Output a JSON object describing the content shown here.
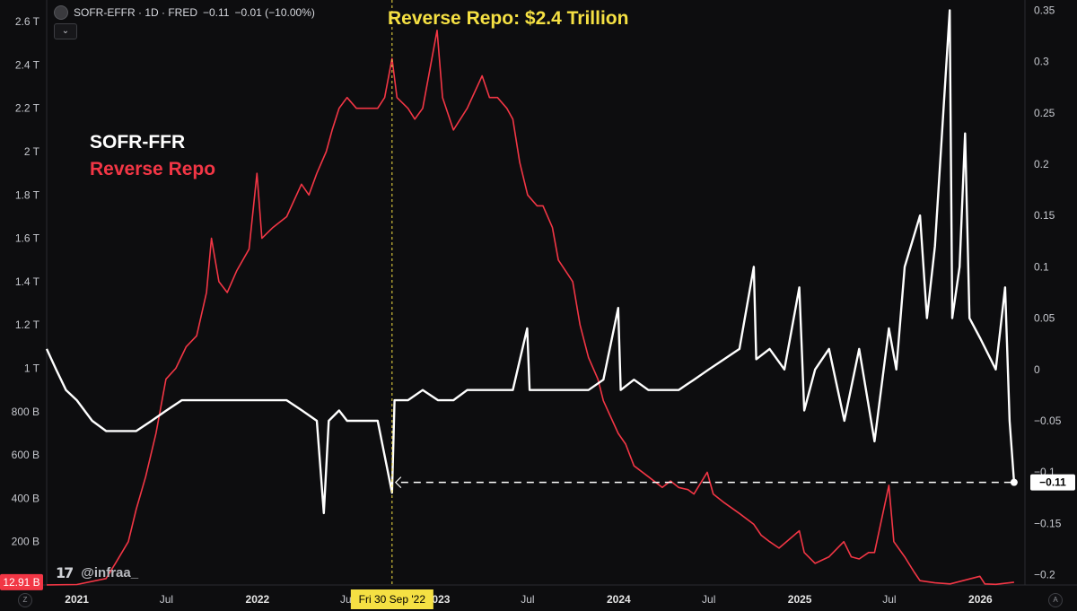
{
  "header": {
    "symbol": "SOFR-EFFR · 1D · FRED",
    "last_value": "−0.11",
    "change": "−0.01 (−10.00%)",
    "collapse_icon": "chevron-down-icon"
  },
  "annotation": {
    "title": "Reverse Repo: $2.4 Trillion",
    "crosshair_date": "Fri 30 Sep '22"
  },
  "legend": {
    "white_label": "SOFR-FFR",
    "red_label": "Reverse Repo"
  },
  "watermark": {
    "logo": "17",
    "handle": "@infraa_"
  },
  "corner": {
    "left": "Z",
    "right": "A"
  },
  "colors": {
    "background": "#0d0d0f",
    "sofr_line": "#ffffff",
    "rrp_line": "#f23645",
    "annotation": "#f5e043"
  },
  "chart_data": {
    "type": "line",
    "title": "Reverse Repo: $2.4 Trillion",
    "x_axis": {
      "range": [
        "2020-11-01",
        "2026-04-01"
      ],
      "ticks": [
        {
          "date": "2021-01-01",
          "label": "2021",
          "year": true
        },
        {
          "date": "2021-07-01",
          "label": "Jul",
          "year": false
        },
        {
          "date": "2022-01-01",
          "label": "2022",
          "year": true
        },
        {
          "date": "2022-07-01",
          "label": "Jul",
          "year": false
        },
        {
          "date": "2023-01-01",
          "label": "2023",
          "year": true
        },
        {
          "date": "2023-07-01",
          "label": "Jul",
          "year": false
        },
        {
          "date": "2024-01-01",
          "label": "2024",
          "year": true
        },
        {
          "date": "2024-07-01",
          "label": "Jul",
          "year": false
        },
        {
          "date": "2025-01-01",
          "label": "2025",
          "year": true
        },
        {
          "date": "2025-07-01",
          "label": "Jul",
          "year": false
        },
        {
          "date": "2026-01-01",
          "label": "2026",
          "year": true
        }
      ]
    },
    "left_axis": {
      "unit": "USD",
      "range": [
        0,
        2700000000000
      ],
      "ticks": [
        {
          "value": 200000000000,
          "label": "200 B"
        },
        {
          "value": 400000000000,
          "label": "400 B"
        },
        {
          "value": 600000000000,
          "label": "600 B"
        },
        {
          "value": 800000000000,
          "label": "800 B"
        },
        {
          "value": 1000000000000,
          "label": "1 T"
        },
        {
          "value": 1200000000000,
          "label": "1.2 T"
        },
        {
          "value": 1400000000000,
          "label": "1.4 T"
        },
        {
          "value": 1600000000000,
          "label": "1.6 T"
        },
        {
          "value": 1800000000000,
          "label": "1.8 T"
        },
        {
          "value": 2000000000000,
          "label": "2 T"
        },
        {
          "value": 2200000000000,
          "label": "2.2 T"
        },
        {
          "value": 2400000000000,
          "label": "2.4 T"
        },
        {
          "value": 2600000000000,
          "label": "2.6 T"
        }
      ],
      "last_value_label": "12.91 B",
      "last_value": 12910000000
    },
    "right_axis": {
      "unit": "percentage points",
      "range": [
        -0.21,
        0.36
      ],
      "ticks": [
        {
          "value": 0.35,
          "label": "0.35"
        },
        {
          "value": 0.3,
          "label": "0.3"
        },
        {
          "value": 0.25,
          "label": "0.25"
        },
        {
          "value": 0.2,
          "label": "0.2"
        },
        {
          "value": 0.15,
          "label": "0.15"
        },
        {
          "value": 0.1,
          "label": "0.1"
        },
        {
          "value": 0.05,
          "label": "0.05"
        },
        {
          "value": 0,
          "label": "0"
        },
        {
          "value": -0.05,
          "label": "−0.05"
        },
        {
          "value": -0.1,
          "label": "−0.1"
        },
        {
          "value": -0.15,
          "label": "−0.15"
        },
        {
          "value": -0.2,
          "label": "−0.2"
        }
      ],
      "last_value_label": "−0.11",
      "last_value": -0.11
    },
    "crosshair_date": "2022-09-30",
    "reference_line": {
      "from": "2022-09-30",
      "to": "2026-03-10",
      "value": -0.11
    },
    "grid": false,
    "legend_placement": "top-left",
    "series": [
      {
        "name": "Reverse Repo",
        "axis": "left",
        "color": "#f23645",
        "points": [
          [
            "2020-11-01",
            0.5
          ],
          [
            "2021-01-01",
            2
          ],
          [
            "2021-03-01",
            30
          ],
          [
            "2021-03-20",
            100
          ],
          [
            "2021-04-15",
            200
          ],
          [
            "2021-05-01",
            350
          ],
          [
            "2021-05-20",
            500
          ],
          [
            "2021-06-10",
            700
          ],
          [
            "2021-06-30",
            950
          ],
          [
            "2021-07-20",
            1000
          ],
          [
            "2021-08-10",
            1100
          ],
          [
            "2021-08-31",
            1150
          ],
          [
            "2021-09-20",
            1350
          ],
          [
            "2021-09-30",
            1600
          ],
          [
            "2021-10-15",
            1400
          ],
          [
            "2021-11-01",
            1350
          ],
          [
            "2021-11-20",
            1450
          ],
          [
            "2021-12-15",
            1550
          ],
          [
            "2021-12-31",
            1900
          ],
          [
            "2022-01-10",
            1600
          ],
          [
            "2022-02-01",
            1650
          ],
          [
            "2022-03-01",
            1700
          ],
          [
            "2022-03-31",
            1850
          ],
          [
            "2022-04-15",
            1800
          ],
          [
            "2022-05-01",
            1900
          ],
          [
            "2022-05-20",
            2000
          ],
          [
            "2022-06-01",
            2100
          ],
          [
            "2022-06-15",
            2200
          ],
          [
            "2022-07-01",
            2250
          ],
          [
            "2022-07-20",
            2200
          ],
          [
            "2022-08-10",
            2200
          ],
          [
            "2022-09-01",
            2200
          ],
          [
            "2022-09-15",
            2250
          ],
          [
            "2022-09-30",
            2430
          ],
          [
            "2022-10-10",
            2250
          ],
          [
            "2022-11-01",
            2200
          ],
          [
            "2022-11-15",
            2150
          ],
          [
            "2022-12-01",
            2200
          ],
          [
            "2022-12-30",
            2560
          ],
          [
            "2023-01-10",
            2250
          ],
          [
            "2023-02-01",
            2100
          ],
          [
            "2023-03-01",
            2200
          ],
          [
            "2023-03-31",
            2350
          ],
          [
            "2023-04-15",
            2250
          ],
          [
            "2023-05-01",
            2250
          ],
          [
            "2023-05-20",
            2200
          ],
          [
            "2023-06-01",
            2150
          ],
          [
            "2023-06-15",
            1950
          ],
          [
            "2023-07-01",
            1800
          ],
          [
            "2023-07-20",
            1750
          ],
          [
            "2023-08-01",
            1750
          ],
          [
            "2023-08-20",
            1650
          ],
          [
            "2023-09-01",
            1500
          ],
          [
            "2023-09-30",
            1400
          ],
          [
            "2023-10-15",
            1200
          ],
          [
            "2023-11-01",
            1050
          ],
          [
            "2023-11-20",
            950
          ],
          [
            "2023-12-01",
            850
          ],
          [
            "2023-12-31",
            700
          ],
          [
            "2024-01-15",
            650
          ],
          [
            "2024-02-01",
            550
          ],
          [
            "2024-03-01",
            500
          ],
          [
            "2024-03-29",
            450
          ],
          [
            "2024-04-15",
            480
          ],
          [
            "2024-05-01",
            450
          ],
          [
            "2024-05-20",
            440
          ],
          [
            "2024-06-01",
            420
          ],
          [
            "2024-06-28",
            520
          ],
          [
            "2024-07-10",
            420
          ],
          [
            "2024-08-01",
            380
          ],
          [
            "2024-09-01",
            330
          ],
          [
            "2024-09-30",
            280
          ],
          [
            "2024-10-15",
            230
          ],
          [
            "2024-11-01",
            200
          ],
          [
            "2024-11-20",
            170
          ],
          [
            "2024-12-31",
            250
          ],
          [
            "2025-01-10",
            150
          ],
          [
            "2025-02-01",
            100
          ],
          [
            "2025-03-01",
            130
          ],
          [
            "2025-03-31",
            200
          ],
          [
            "2025-04-15",
            130
          ],
          [
            "2025-05-01",
            120
          ],
          [
            "2025-05-20",
            150
          ],
          [
            "2025-06-01",
            150
          ],
          [
            "2025-06-30",
            460
          ],
          [
            "2025-07-10",
            200
          ],
          [
            "2025-08-01",
            130
          ],
          [
            "2025-08-20",
            60
          ],
          [
            "2025-09-01",
            20
          ],
          [
            "2025-10-01",
            10
          ],
          [
            "2025-11-01",
            5
          ],
          [
            "2025-12-31",
            40
          ],
          [
            "2026-01-10",
            5
          ],
          [
            "2026-02-01",
            3
          ],
          [
            "2026-03-10",
            12.91
          ]
        ],
        "points_unit": "billions USD"
      },
      {
        "name": "SOFR-FFR",
        "axis": "right",
        "color": "#ffffff",
        "points": [
          [
            "2020-11-01",
            0.02
          ],
          [
            "2020-11-20",
            0
          ],
          [
            "2020-12-10",
            -0.02
          ],
          [
            "2021-01-01",
            -0.03
          ],
          [
            "2021-02-01",
            -0.05
          ],
          [
            "2021-03-01",
            -0.06
          ],
          [
            "2021-04-01",
            -0.06
          ],
          [
            "2021-05-01",
            -0.06
          ],
          [
            "2021-06-01",
            -0.05
          ],
          [
            "2021-07-01",
            -0.04
          ],
          [
            "2021-08-01",
            -0.03
          ],
          [
            "2021-09-01",
            -0.03
          ],
          [
            "2021-10-01",
            -0.03
          ],
          [
            "2021-11-01",
            -0.03
          ],
          [
            "2021-12-01",
            -0.03
          ],
          [
            "2022-01-01",
            -0.03
          ],
          [
            "2022-02-01",
            -0.03
          ],
          [
            "2022-03-01",
            -0.03
          ],
          [
            "2022-04-01",
            -0.04
          ],
          [
            "2022-05-01",
            -0.05
          ],
          [
            "2022-05-15",
            -0.14
          ],
          [
            "2022-05-25",
            -0.05
          ],
          [
            "2022-06-15",
            -0.04
          ],
          [
            "2022-07-01",
            -0.05
          ],
          [
            "2022-08-01",
            -0.05
          ],
          [
            "2022-09-01",
            -0.05
          ],
          [
            "2022-09-30",
            -0.12
          ],
          [
            "2022-10-05",
            -0.03
          ],
          [
            "2022-11-01",
            -0.03
          ],
          [
            "2022-12-01",
            -0.02
          ],
          [
            "2023-01-01",
            -0.03
          ],
          [
            "2023-02-01",
            -0.03
          ],
          [
            "2023-03-01",
            -0.02
          ],
          [
            "2023-04-01",
            -0.02
          ],
          [
            "2023-05-01",
            -0.02
          ],
          [
            "2023-06-01",
            -0.02
          ],
          [
            "2023-06-30",
            0.04
          ],
          [
            "2023-07-05",
            -0.02
          ],
          [
            "2023-08-01",
            -0.02
          ],
          [
            "2023-09-01",
            -0.02
          ],
          [
            "2023-10-01",
            -0.02
          ],
          [
            "2023-11-01",
            -0.02
          ],
          [
            "2023-12-01",
            -0.01
          ],
          [
            "2023-12-31",
            0.06
          ],
          [
            "2024-01-05",
            -0.02
          ],
          [
            "2024-02-01",
            -0.01
          ],
          [
            "2024-03-01",
            -0.02
          ],
          [
            "2024-04-01",
            -0.02
          ],
          [
            "2024-05-01",
            -0.02
          ],
          [
            "2024-06-01",
            -0.01
          ],
          [
            "2024-07-01",
            0
          ],
          [
            "2024-08-01",
            0.01
          ],
          [
            "2024-09-01",
            0.02
          ],
          [
            "2024-09-30",
            0.1
          ],
          [
            "2024-10-05",
            0.01
          ],
          [
            "2024-11-01",
            0.02
          ],
          [
            "2024-12-01",
            0
          ],
          [
            "2024-12-31",
            0.08
          ],
          [
            "2025-01-10",
            -0.04
          ],
          [
            "2025-02-01",
            0
          ],
          [
            "2025-03-01",
            0.02
          ],
          [
            "2025-04-01",
            -0.05
          ],
          [
            "2025-05-01",
            0.02
          ],
          [
            "2025-06-01",
            -0.07
          ],
          [
            "2025-06-30",
            0.04
          ],
          [
            "2025-07-15",
            0
          ],
          [
            "2025-08-01",
            0.1
          ],
          [
            "2025-09-01",
            0.15
          ],
          [
            "2025-09-15",
            0.05
          ],
          [
            "2025-10-01",
            0.12
          ],
          [
            "2025-10-31",
            0.35
          ],
          [
            "2025-11-05",
            0.05
          ],
          [
            "2025-11-20",
            0.1
          ],
          [
            "2025-12-01",
            0.23
          ],
          [
            "2025-12-10",
            0.05
          ],
          [
            "2026-01-01",
            0.03
          ],
          [
            "2026-02-01",
            0
          ],
          [
            "2026-02-20",
            0.08
          ],
          [
            "2026-03-01",
            -0.05
          ],
          [
            "2026-03-10",
            -0.11
          ]
        ]
      }
    ]
  }
}
